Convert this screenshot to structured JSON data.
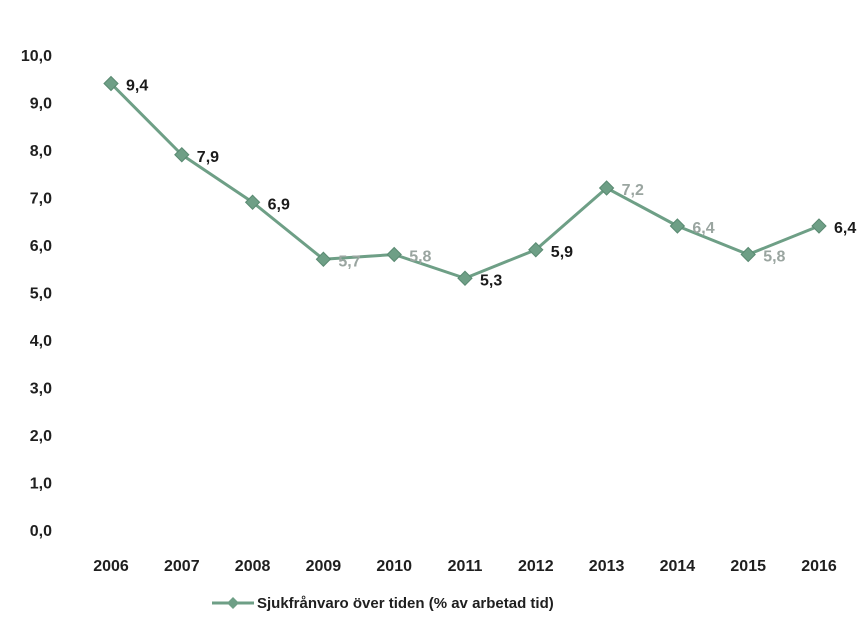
{
  "chart_data": {
    "type": "line",
    "title": "",
    "xlabel": "",
    "ylabel": "",
    "categories": [
      "2006",
      "2007",
      "2008",
      "2009",
      "2010",
      "2011",
      "2012",
      "2013",
      "2014",
      "2015",
      "2016"
    ],
    "series": [
      {
        "name": "Sjukfrånvaro över tiden (% av arbetad tid)",
        "values": [
          9.4,
          7.9,
          6.9,
          5.7,
          5.8,
          5.3,
          5.9,
          7.2,
          6.4,
          5.8,
          6.4
        ],
        "data_labels": [
          "9,4",
          "7,9",
          "6,9",
          "5,7",
          "5,8",
          "5,3",
          "5,9",
          "7,2",
          "6,4",
          "5,8",
          "6,4"
        ],
        "data_label_colors": [
          "#1a1a1a",
          "#1a1a1a",
          "#1a1a1a",
          "#9aa5a0",
          "#9aa5a0",
          "#1a1a1a",
          "#1a1a1a",
          "#9aa5a0",
          "#9aa5a0",
          "#9aa5a0",
          "#1a1a1a"
        ],
        "color": "#6e9f86",
        "marker": "diamond"
      }
    ],
    "ylim": [
      0,
      10
    ],
    "y_ticks": [
      "0,0",
      "1,0",
      "2,0",
      "3,0",
      "4,0",
      "5,0",
      "6,0",
      "7,0",
      "8,0",
      "9,0",
      "10,0"
    ],
    "grid": false,
    "legend_position": "bottom"
  }
}
